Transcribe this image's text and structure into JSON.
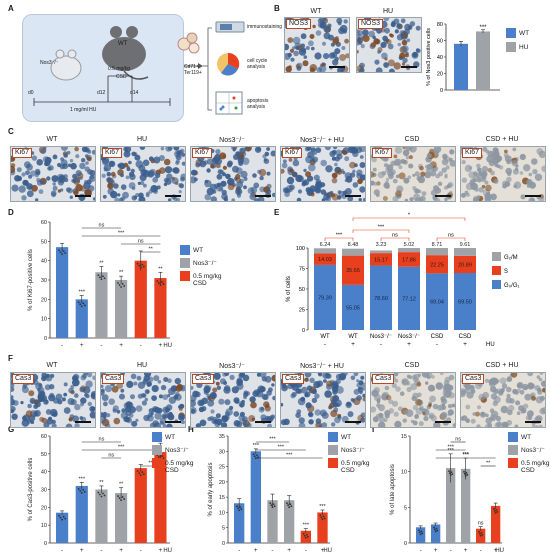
{
  "labels": {
    "A": "A",
    "B": "B",
    "C": "C",
    "D": "D",
    "E": "E",
    "F": "F",
    "G": "G",
    "H": "H",
    "I": "I"
  },
  "schematic": {
    "d0": "d0",
    "d12": "d12",
    "d14": "d14",
    "mouse_small": "Nos3⁻/⁻",
    "mouse_big": "WT",
    "dose": "0.5 mg/kg",
    "csd": "CSD",
    "hu": "1 mg/ml HU",
    "cells": "Cd71+\nTer119+",
    "out1": "immunostaining",
    "out2": "cell cycle\nanalysis",
    "out3": "apoptosis\nanalysis"
  },
  "panelB": {
    "tag": "NOS3",
    "titles": [
      "WT",
      "HU"
    ],
    "legend": [
      "WT",
      "HU"
    ],
    "ylabel": "% of Nos3 positive cells",
    "sig": "***",
    "chart_data": {
      "type": "bar",
      "categories": [
        "WT",
        "HU"
      ],
      "values": [
        56,
        71
      ],
      "errors": [
        3,
        2
      ],
      "ylim": [
        0,
        80
      ],
      "yticks": [
        0,
        20,
        40,
        60,
        80
      ],
      "colors": [
        "#4a7fc9",
        "#9fa3a8"
      ]
    }
  },
  "panelC": {
    "tag": "Ki67",
    "titles": [
      "WT",
      "HU",
      "Nos3⁻/⁻",
      "Nos3⁻/⁻ + HU",
      "CSD",
      "CSD + HU"
    ]
  },
  "panelF": {
    "tag": "Cas3",
    "titles": [
      "WT",
      "HU",
      "Nos3⁻/⁻",
      "Nos3⁻/⁻ + HU",
      "CSD",
      "CSD + HU"
    ]
  },
  "groupLegend": [
    "WT",
    "Nos3⁻/⁻",
    "0.5 mg/kg\nCSD"
  ],
  "hu_signs": [
    "-",
    "+",
    "-",
    "+",
    "-",
    "+"
  ],
  "hu_label": "HU",
  "panelD": {
    "ylabel": "% of Ki67-positive cells",
    "chart_data": {
      "type": "bar",
      "values": [
        47,
        20,
        34,
        30,
        40,
        31
      ],
      "errors": [
        2,
        2,
        3,
        2,
        5,
        3
      ],
      "ylim": [
        0,
        60
      ],
      "yticks": [
        0,
        10,
        20,
        30,
        40,
        50,
        60
      ],
      "bar_sigs": [
        "",
        "***",
        "**",
        "**",
        "",
        "**"
      ],
      "brackets": [
        {
          "from": 1,
          "to": 3,
          "text": "ns"
        },
        {
          "from": 1,
          "to": 5,
          "text": "***"
        },
        {
          "from": 3,
          "to": 5,
          "text": "ns"
        },
        {
          "from": 4,
          "to": 5,
          "text": "**"
        }
      ]
    }
  },
  "panelE": {
    "ylabel": "% of cells",
    "xcats": [
      "WT",
      "WT",
      "Nos3⁻/⁻",
      "Nos3⁻/⁻",
      "CSD",
      "CSD"
    ],
    "legend": [
      "G₂/M",
      "S",
      "G₀/G₁"
    ],
    "chart_data": {
      "type": "bar",
      "stacked": true,
      "ylim": [
        0,
        100
      ],
      "yticks": [
        0,
        25,
        50,
        75,
        100
      ],
      "series": [
        {
          "name": "G₀/G₁",
          "values": [
            79.39,
            55.05,
            78.6,
            77.12,
            69.04,
            69.5
          ],
          "color": "#4a7fc9"
        },
        {
          "name": "S",
          "values": [
            14.03,
            35.65,
            15.17,
            17.86,
            22.25,
            20.89
          ],
          "color": "#e8401e"
        },
        {
          "name": "G₂/M",
          "values": [
            6.24,
            8.48,
            3.23,
            5.02,
            8.71,
            9.61
          ],
          "color": "#9fa3a8"
        }
      ],
      "top_labels": [
        "6.24",
        "8.48",
        "3.23",
        "5.02",
        "8.71",
        "9.61"
      ],
      "s_labels": [
        "14.03",
        "35.65",
        "15.17",
        "17.86",
        "22.25",
        "20.89"
      ],
      "g_labels": [
        "79.39",
        "55.05",
        "78.60",
        "77.12",
        "69.04",
        "69.50"
      ],
      "brackets": [
        {
          "from": 0,
          "to": 1,
          "text": "***"
        },
        {
          "from": 2,
          "to": 3,
          "text": "ns"
        },
        {
          "from": 4,
          "to": 5,
          "text": "ns"
        },
        {
          "from": 1,
          "to": 3,
          "text": "***"
        },
        {
          "from": 1,
          "to": 5,
          "text": "*"
        }
      ]
    }
  },
  "panelG": {
    "ylabel": "% of Cas3-positive cells",
    "chart_data": {
      "type": "bar",
      "values": [
        17,
        32,
        30,
        28,
        42,
        51
      ],
      "errors": [
        1,
        2,
        2,
        3,
        2,
        5
      ],
      "ylim": [
        0,
        60
      ],
      "yticks": [
        0,
        10,
        20,
        30,
        40,
        50,
        60
      ],
      "bar_sigs": [
        "",
        "***",
        "**",
        "**",
        "",
        "**"
      ],
      "brackets": [
        {
          "from": 1,
          "to": 3,
          "text": "ns"
        },
        {
          "from": 1,
          "to": 5,
          "text": "***"
        },
        {
          "from": 2,
          "to": 3,
          "text": "ns"
        },
        {
          "from": 4,
          "to": 5,
          "text": "**"
        }
      ]
    }
  },
  "panelH": {
    "ylabel": "% of early apoptosis",
    "chart_data": {
      "type": "bar",
      "values": [
        13,
        30,
        14,
        14,
        4,
        10
      ],
      "errors": [
        1.5,
        0.8,
        2,
        1.5,
        0.7,
        0.8
      ],
      "ylim": [
        0,
        35
      ],
      "yticks": [
        0,
        5,
        10,
        15,
        20,
        25,
        30,
        35
      ],
      "bar_sigs": [
        "",
        "***",
        "",
        "",
        "***",
        "***"
      ],
      "brackets": [
        {
          "from": 1,
          "to": 3,
          "text": "***"
        },
        {
          "from": 1,
          "to": 4,
          "text": "***"
        },
        {
          "from": 1,
          "to": 5,
          "text": "***"
        }
      ]
    }
  },
  "panelI": {
    "ylabel": "% of late apoptosis",
    "chart_data": {
      "type": "bar",
      "values": [
        2.2,
        2.6,
        10.5,
        10.4,
        2,
        5.2
      ],
      "errors": [
        0.2,
        0.2,
        2,
        1.5,
        0.3,
        0.4
      ],
      "ylim": [
        0,
        15
      ],
      "yticks": [
        0,
        5,
        10,
        15
      ],
      "bar_sigs": [
        "",
        "",
        "***",
        "***",
        "ns",
        ""
      ],
      "brackets": [
        {
          "from": 2,
          "to": 3,
          "text": "ns"
        },
        {
          "from": 1,
          "to": 3,
          "text": "***"
        },
        {
          "from": 1,
          "to": 5,
          "text": "***"
        },
        {
          "from": 4,
          "to": 5,
          "text": "**"
        }
      ]
    }
  }
}
